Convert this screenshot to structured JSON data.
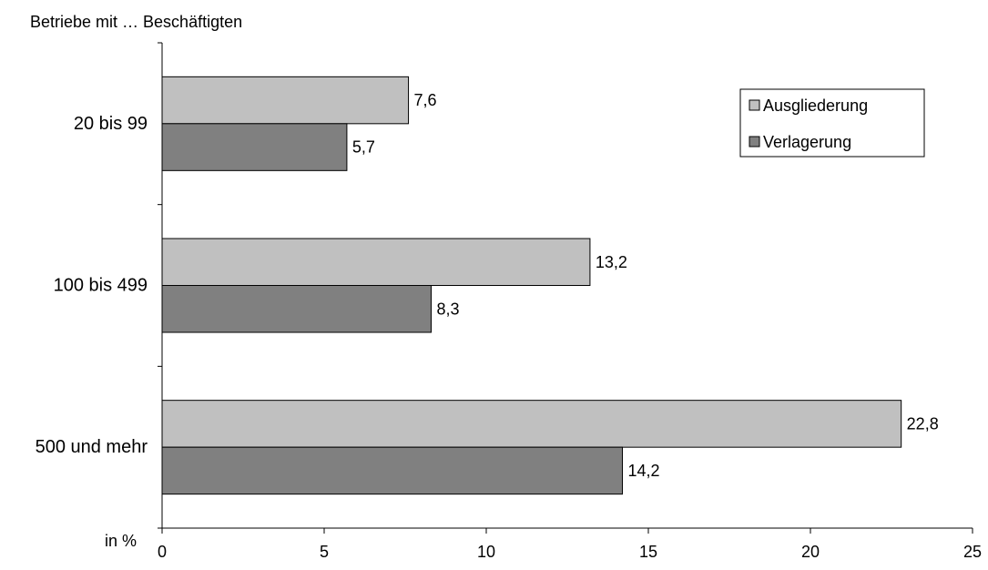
{
  "chart_data": {
    "type": "bar",
    "orientation": "horizontal",
    "ylabel": "Betriebe mit … Beschäftigten",
    "xlabel": "in %",
    "categories": [
      "20 bis 99",
      "100 bis 499",
      "500 und mehr"
    ],
    "series": [
      {
        "name": "Ausgliederung",
        "values": [
          7.6,
          13.2,
          22.8
        ],
        "labels": [
          "7,6",
          "13,2",
          "22,8"
        ],
        "color": "#c0c0c0"
      },
      {
        "name": "Verlagerung",
        "values": [
          5.7,
          8.3,
          14.2
        ],
        "labels": [
          "5,7",
          "8,3",
          "14,2"
        ],
        "color": "#808080"
      }
    ],
    "xlim": [
      0,
      25
    ],
    "xticks": [
      0,
      5,
      10,
      15,
      20,
      25
    ],
    "xtick_labels": [
      "0",
      "5",
      "10",
      "15",
      "20",
      "25"
    ],
    "grid": false,
    "legend_position": "top-right"
  }
}
